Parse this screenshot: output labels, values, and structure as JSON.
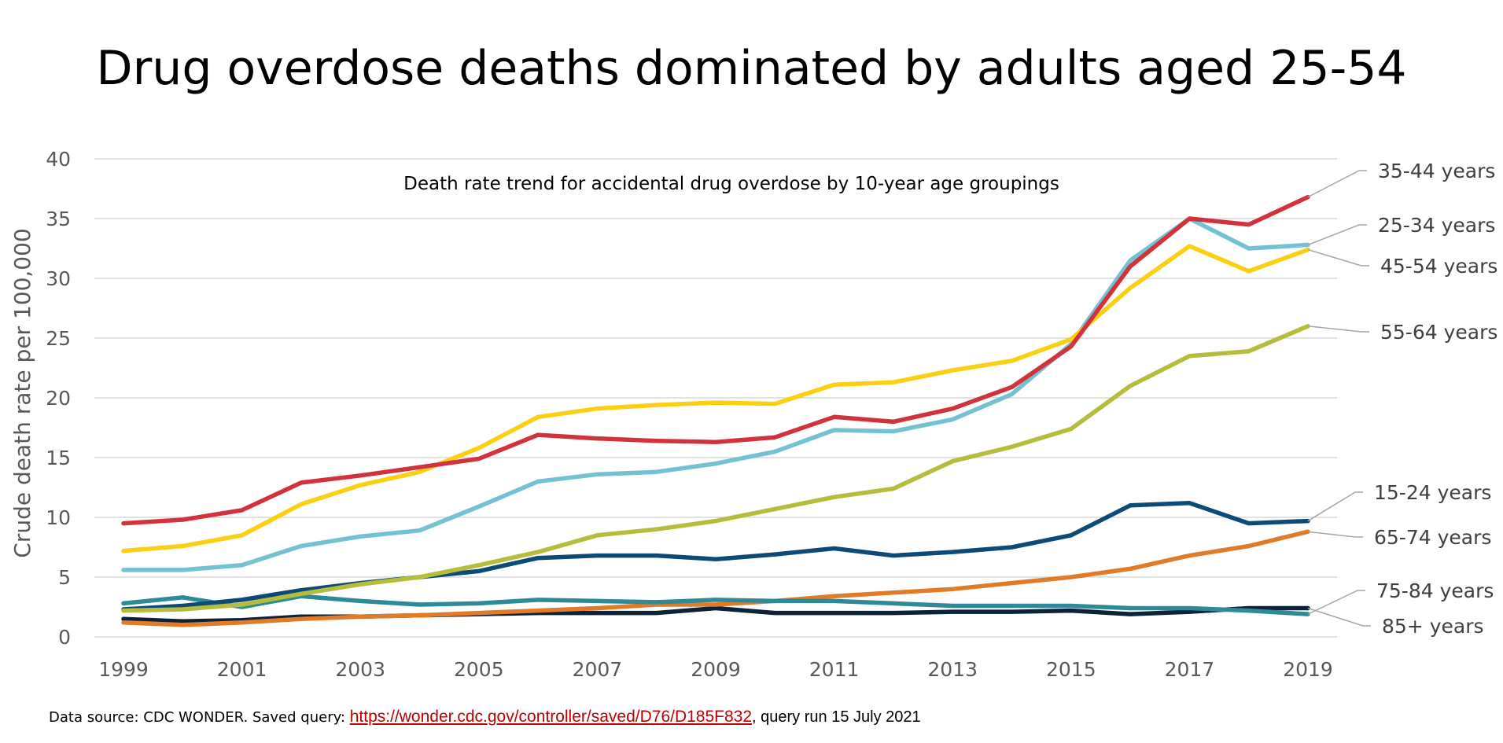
{
  "title": "Drug overdose deaths dominated by adults aged 25-54",
  "footer": {
    "prefix": "Data source: CDC WONDER. Saved query: ",
    "link": "https://wonder.cdc.gov/controller/saved/D76/D185F832",
    "suffix": ", query run 15 July 2021"
  },
  "chart_data": {
    "type": "line",
    "subtitle": "Death rate trend for accidental drug overdose by 10-year age groupings",
    "ylabel": "Crude death rate per 100,000",
    "xlabel": "",
    "ylim": [
      0,
      40
    ],
    "y_ticks": [
      0,
      5,
      10,
      15,
      20,
      25,
      30,
      35,
      40
    ],
    "x": [
      1999,
      2000,
      2001,
      2002,
      2003,
      2004,
      2005,
      2006,
      2007,
      2008,
      2009,
      2010,
      2011,
      2012,
      2013,
      2014,
      2015,
      2016,
      2017,
      2018,
      2019
    ],
    "x_ticks": [
      1999,
      2001,
      2003,
      2005,
      2007,
      2009,
      2011,
      2013,
      2015,
      2017,
      2019
    ],
    "grid": "horizontal",
    "legend": "direct labels at right",
    "series": [
      {
        "name": "85+ years",
        "color": "#0b2239",
        "values": [
          1.5,
          1.3,
          1.4,
          1.7,
          1.7,
          1.8,
          1.9,
          2.0,
          2.0,
          2.0,
          2.4,
          2.0,
          2.0,
          2.0,
          2.1,
          2.1,
          2.2,
          1.9,
          2.1,
          2.4,
          2.4
        ]
      },
      {
        "name": "65-74 years",
        "color": "#e07b2a",
        "values": [
          1.2,
          1.0,
          1.2,
          1.5,
          1.7,
          1.8,
          2.0,
          2.2,
          2.4,
          2.7,
          2.7,
          3.0,
          3.4,
          3.7,
          4.0,
          4.5,
          5.0,
          5.7,
          6.8,
          7.6,
          8.8
        ]
      },
      {
        "name": "75-84 years",
        "color": "#2e8a96",
        "values": [
          2.8,
          3.3,
          2.5,
          3.4,
          3.0,
          2.7,
          2.8,
          3.1,
          3.0,
          2.9,
          3.1,
          3.0,
          3.0,
          2.8,
          2.6,
          2.6,
          2.6,
          2.4,
          2.4,
          2.2,
          1.9
        ]
      },
      {
        "name": "15-24 years",
        "color": "#0e4a78",
        "values": [
          2.3,
          2.6,
          3.1,
          3.9,
          4.5,
          5.0,
          5.5,
          6.6,
          6.8,
          6.8,
          6.5,
          6.9,
          7.4,
          6.8,
          7.1,
          7.5,
          8.5,
          11.0,
          11.2,
          9.5,
          9.7
        ]
      },
      {
        "name": "55-64 years",
        "color": "#b5bd3a",
        "values": [
          2.2,
          2.3,
          2.7,
          3.6,
          4.4,
          5.0,
          6.0,
          7.1,
          8.5,
          9.0,
          9.7,
          10.7,
          11.7,
          12.4,
          14.7,
          15.9,
          17.4,
          21.0,
          23.5,
          23.9,
          26.0
        ]
      },
      {
        "name": "25-34 years",
        "color": "#74c2d1",
        "values": [
          5.6,
          5.6,
          6.0,
          7.6,
          8.4,
          8.9,
          10.9,
          13.0,
          13.6,
          13.8,
          14.5,
          15.5,
          17.3,
          17.2,
          18.2,
          20.3,
          24.5,
          31.5,
          35.0,
          32.5,
          32.8
        ]
      },
      {
        "name": "45-54 years",
        "color": "#fbcf12",
        "values": [
          7.2,
          7.6,
          8.5,
          11.1,
          12.7,
          13.8,
          15.8,
          18.4,
          19.1,
          19.4,
          19.6,
          19.5,
          21.1,
          21.3,
          22.3,
          23.1,
          24.9,
          29.2,
          32.7,
          30.6,
          32.4
        ]
      },
      {
        "name": "35-44 years",
        "color": "#d1323b",
        "values": [
          9.5,
          9.8,
          10.6,
          12.9,
          13.5,
          14.2,
          14.9,
          16.9,
          16.6,
          16.4,
          16.3,
          16.7,
          18.4,
          18.0,
          19.1,
          20.9,
          24.3,
          31.0,
          35.0,
          34.5,
          36.8
        ]
      }
    ]
  }
}
